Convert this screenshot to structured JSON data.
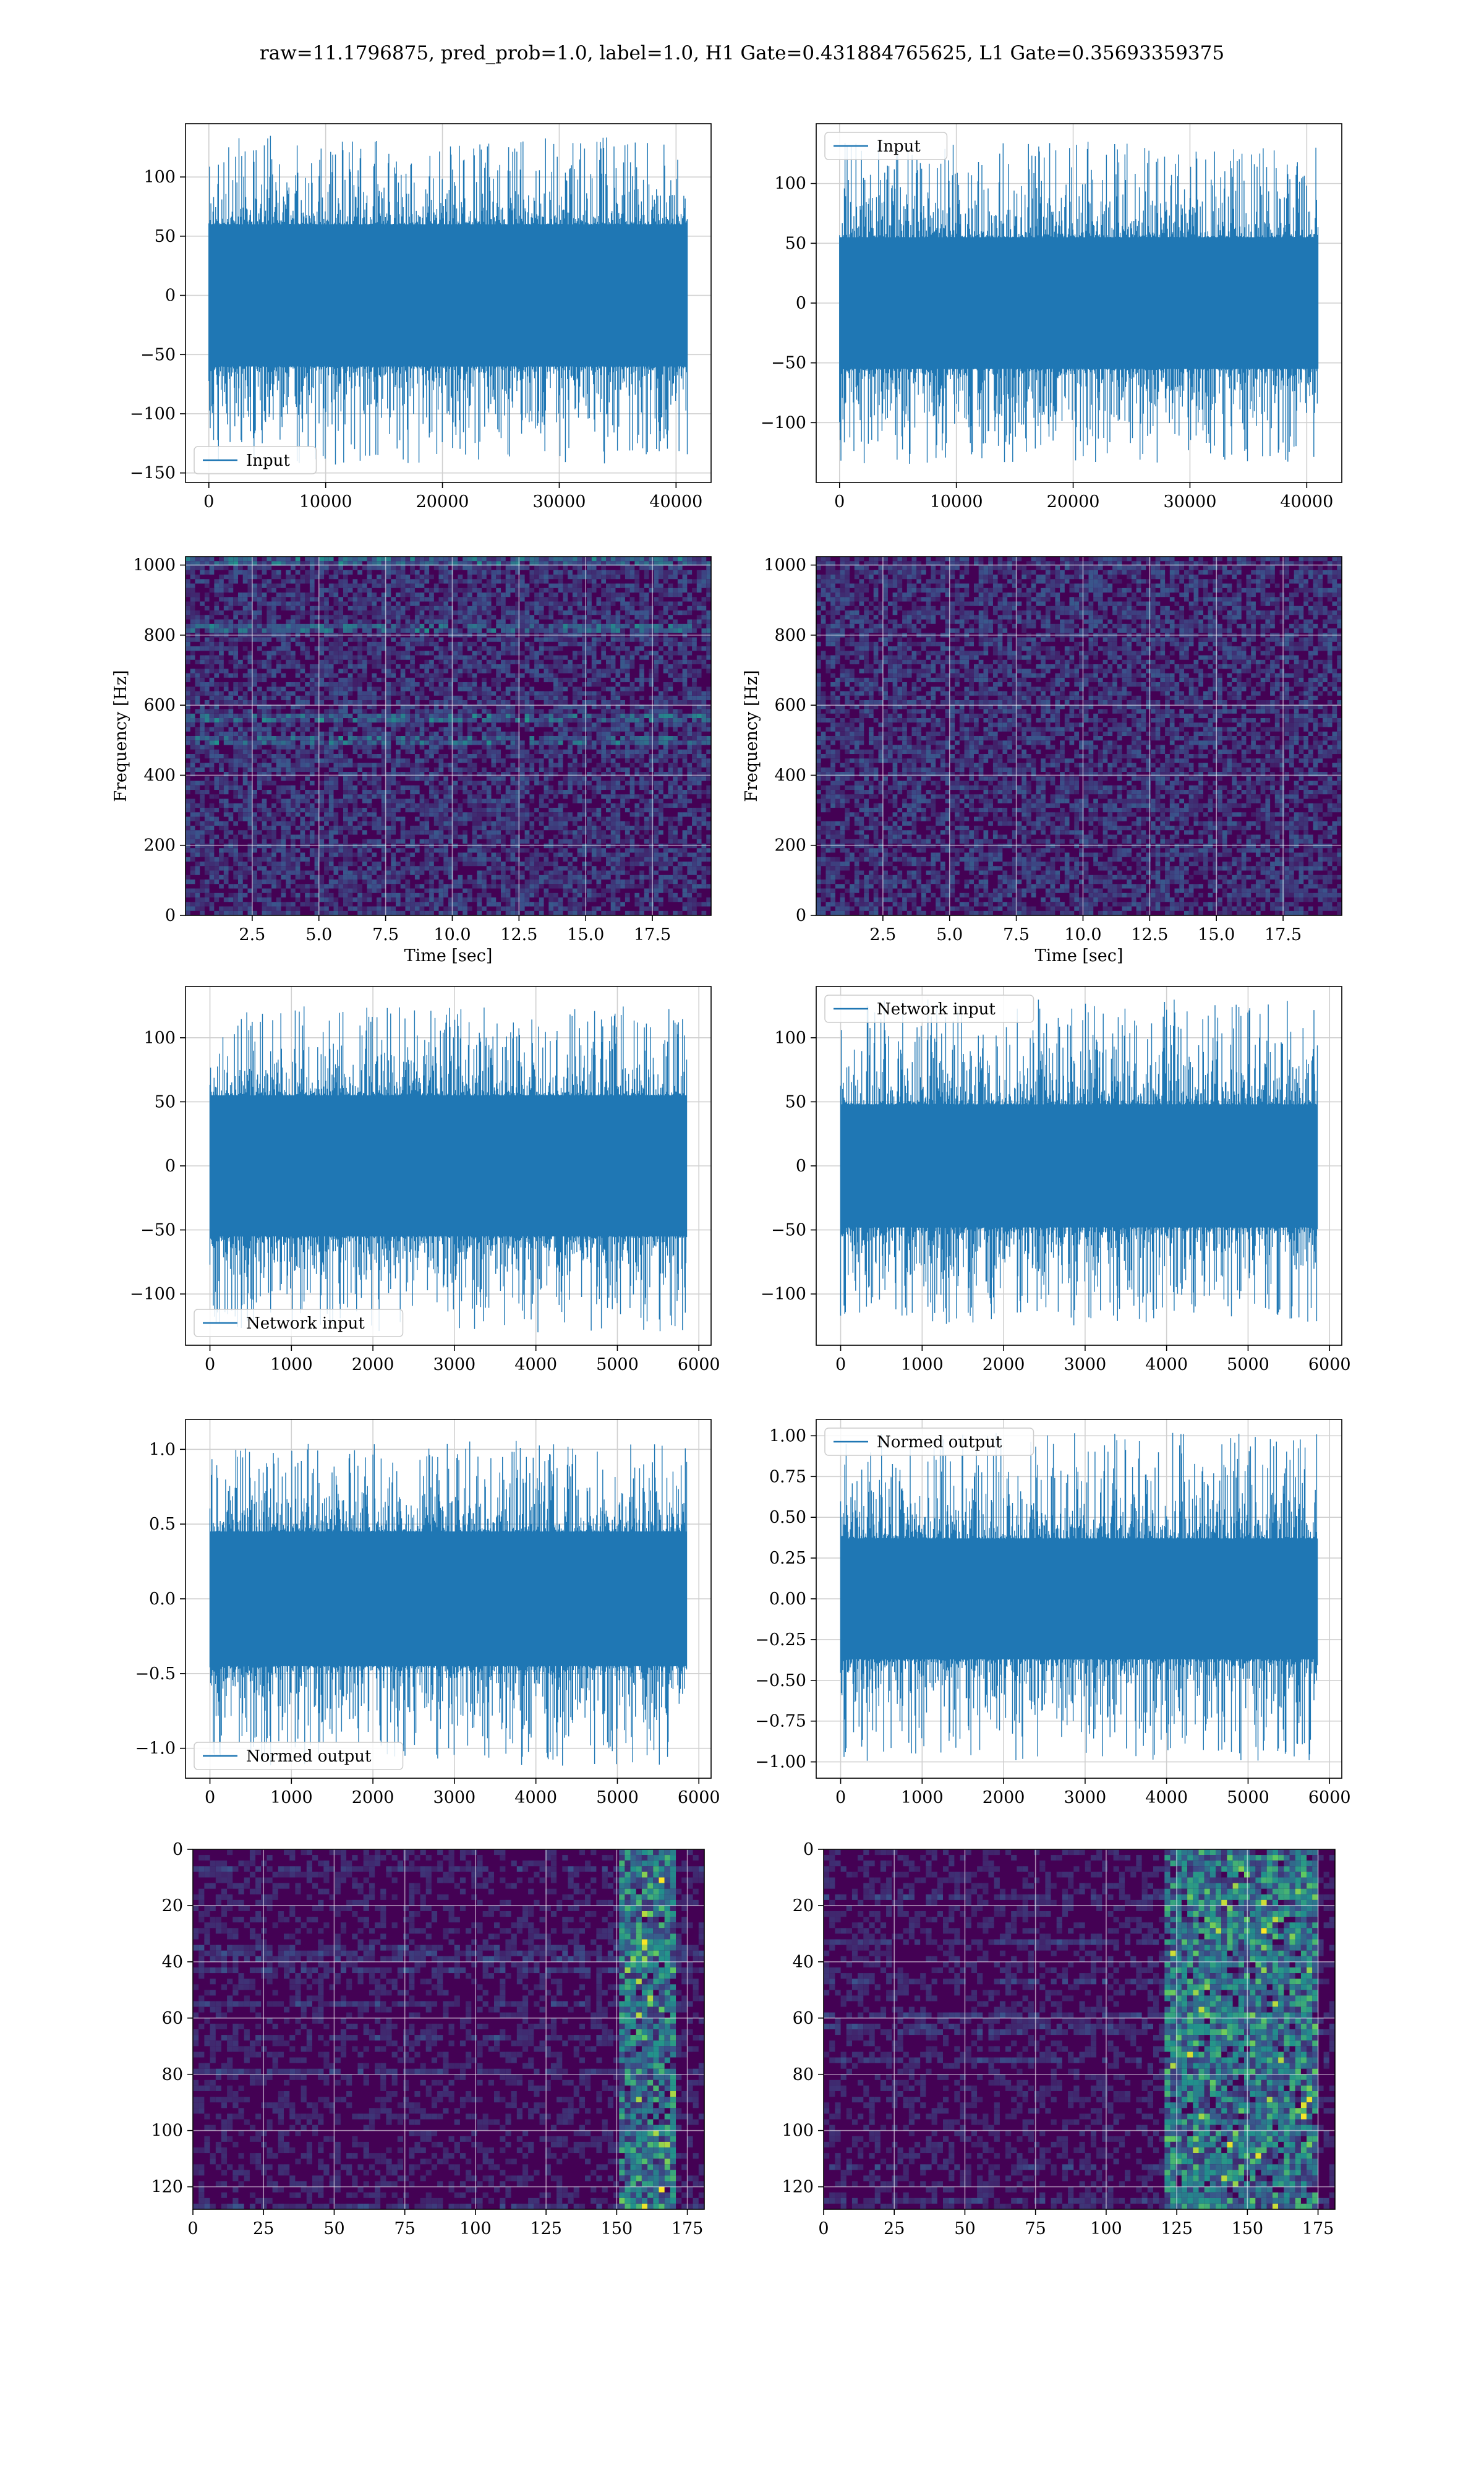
{
  "figure": {
    "suptitle": "raw=11.1796875, pred_prob=1.0, label=1.0, H1 Gate=0.431884765625, L1 Gate=0.35693359375"
  },
  "colors": {
    "line": "#1f77b4",
    "grid": "#d0d0d0",
    "viridis_low": "#440154",
    "viridis_mid": "#21918c",
    "viridis_high": "#fde725"
  },
  "chart_data": [
    {
      "id": "h1_input",
      "type": "line",
      "panel": "row1-left",
      "title": "",
      "xlabel": "",
      "ylabel": "",
      "xlim": [
        -2000,
        43000
      ],
      "ylim": [
        -158,
        145
      ],
      "xticks": [
        0,
        10000,
        20000,
        30000,
        40000
      ],
      "yticks": [
        -150,
        -100,
        -50,
        0,
        50,
        100
      ],
      "grid": true,
      "legend_loc": "lower left",
      "series": [
        {
          "name": "Input",
          "x_range": [
            0,
            40960
          ],
          "envelope": [
            -60,
            60
          ],
          "peak_range": [
            -143,
            135
          ]
        }
      ]
    },
    {
      "id": "l1_input",
      "type": "line",
      "panel": "row1-right",
      "title": "",
      "xlabel": "",
      "ylabel": "",
      "xlim": [
        -2000,
        43000
      ],
      "ylim": [
        -150,
        150
      ],
      "xticks": [
        0,
        10000,
        20000,
        30000,
        40000
      ],
      "yticks": [
        -100,
        -50,
        0,
        50,
        100
      ],
      "grid": true,
      "legend_loc": "upper left",
      "series": [
        {
          "name": "Input",
          "x_range": [
            0,
            40960
          ],
          "envelope": [
            -55,
            55
          ],
          "peak_range": [
            -135,
            135
          ]
        }
      ]
    },
    {
      "id": "h1_spectrogram",
      "type": "heatmap",
      "panel": "row2-left",
      "xlabel": "Time [sec]",
      "ylabel": "Frequency [Hz]",
      "xlim": [
        0,
        19.7
      ],
      "ylim": [
        0,
        1024
      ],
      "xticks": [
        2.5,
        5.0,
        7.5,
        10.0,
        12.5,
        15.0,
        17.5
      ],
      "yticks": [
        0,
        200,
        400,
        600,
        800,
        1000
      ],
      "grid": true,
      "colormap": "viridis",
      "bright_bands_hz": [
        1010,
        820,
        560,
        500
      ]
    },
    {
      "id": "l1_spectrogram",
      "type": "heatmap",
      "panel": "row2-right",
      "xlabel": "Time [sec]",
      "ylabel": "Frequency [Hz]",
      "xlim": [
        0,
        19.7
      ],
      "ylim": [
        0,
        1024
      ],
      "xticks": [
        2.5,
        5.0,
        7.5,
        10.0,
        12.5,
        15.0,
        17.5
      ],
      "yticks": [
        0,
        200,
        400,
        600,
        800,
        1000
      ],
      "grid": true,
      "colormap": "viridis",
      "bright_bands_hz": []
    },
    {
      "id": "h1_network_input",
      "type": "line",
      "panel": "row3-left",
      "xlim": [
        -300,
        6150
      ],
      "ylim": [
        -140,
        140
      ],
      "xticks": [
        0,
        1000,
        2000,
        3000,
        4000,
        5000,
        6000
      ],
      "yticks": [
        -100,
        -50,
        0,
        50,
        100
      ],
      "grid": true,
      "legend_loc": "lower left",
      "series": [
        {
          "name": "Network input",
          "x_range": [
            0,
            5850
          ],
          "envelope": [
            -55,
            55
          ],
          "peak_range": [
            -130,
            125
          ]
        }
      ]
    },
    {
      "id": "l1_network_input",
      "type": "line",
      "panel": "row3-right",
      "xlim": [
        -300,
        6150
      ],
      "ylim": [
        -140,
        140
      ],
      "xticks": [
        0,
        1000,
        2000,
        3000,
        4000,
        5000,
        6000
      ],
      "yticks": [
        -100,
        -50,
        0,
        50,
        100
      ],
      "grid": true,
      "legend_loc": "upper left",
      "series": [
        {
          "name": "Network input",
          "x_range": [
            0,
            5850
          ],
          "envelope": [
            -48,
            48
          ],
          "peak_range": [
            -125,
            130
          ]
        }
      ]
    },
    {
      "id": "h1_normed_output",
      "type": "line",
      "panel": "row4-left",
      "xlim": [
        -300,
        6150
      ],
      "ylim": [
        -1.2,
        1.2
      ],
      "xticks": [
        0,
        1000,
        2000,
        3000,
        4000,
        5000,
        6000
      ],
      "yticks": [
        -1.0,
        -0.5,
        0.0,
        0.5,
        1.0
      ],
      "ytick_labels": [
        "−1.0",
        "−0.5",
        "0.0",
        "0.5",
        "1.0"
      ],
      "grid": true,
      "legend_loc": "lower left",
      "series": [
        {
          "name": "Normed output",
          "x_range": [
            0,
            5850
          ],
          "envelope": [
            -0.45,
            0.45
          ],
          "peak_range": [
            -1.12,
            1.06
          ]
        }
      ]
    },
    {
      "id": "l1_normed_output",
      "type": "line",
      "panel": "row4-right",
      "xlim": [
        -300,
        6150
      ],
      "ylim": [
        -1.1,
        1.1
      ],
      "xticks": [
        0,
        1000,
        2000,
        3000,
        4000,
        5000,
        6000
      ],
      "yticks": [
        -1.0,
        -0.75,
        -0.5,
        -0.25,
        0.0,
        0.25,
        0.5,
        0.75,
        1.0
      ],
      "ytick_labels": [
        "−1.00",
        "−0.75",
        "−0.50",
        "−0.25",
        "0.00",
        "0.25",
        "0.50",
        "0.75",
        "1.00"
      ],
      "grid": true,
      "legend_loc": "upper left",
      "series": [
        {
          "name": "Normed output",
          "x_range": [
            0,
            5850
          ],
          "envelope": [
            -0.37,
            0.37
          ],
          "peak_range": [
            -1.0,
            1.02
          ]
        }
      ]
    },
    {
      "id": "h1_features",
      "type": "heatmap",
      "panel": "row5-left",
      "xlim": [
        0,
        181
      ],
      "ylim": [
        128,
        0
      ],
      "xticks": [
        0,
        25,
        50,
        75,
        100,
        125,
        150,
        175
      ],
      "yticks": [
        0,
        20,
        40,
        60,
        80,
        100,
        120
      ],
      "grid": true,
      "colormap": "viridis",
      "hot_columns": [
        150,
        170
      ]
    },
    {
      "id": "l1_features",
      "type": "heatmap",
      "panel": "row5-right",
      "xlim": [
        0,
        181
      ],
      "ylim": [
        128,
        0
      ],
      "xticks": [
        0,
        25,
        50,
        75,
        100,
        125,
        150,
        175
      ],
      "yticks": [
        0,
        20,
        40,
        60,
        80,
        100,
        120
      ],
      "grid": true,
      "colormap": "viridis",
      "hot_columns": [
        120,
        175
      ]
    }
  ]
}
